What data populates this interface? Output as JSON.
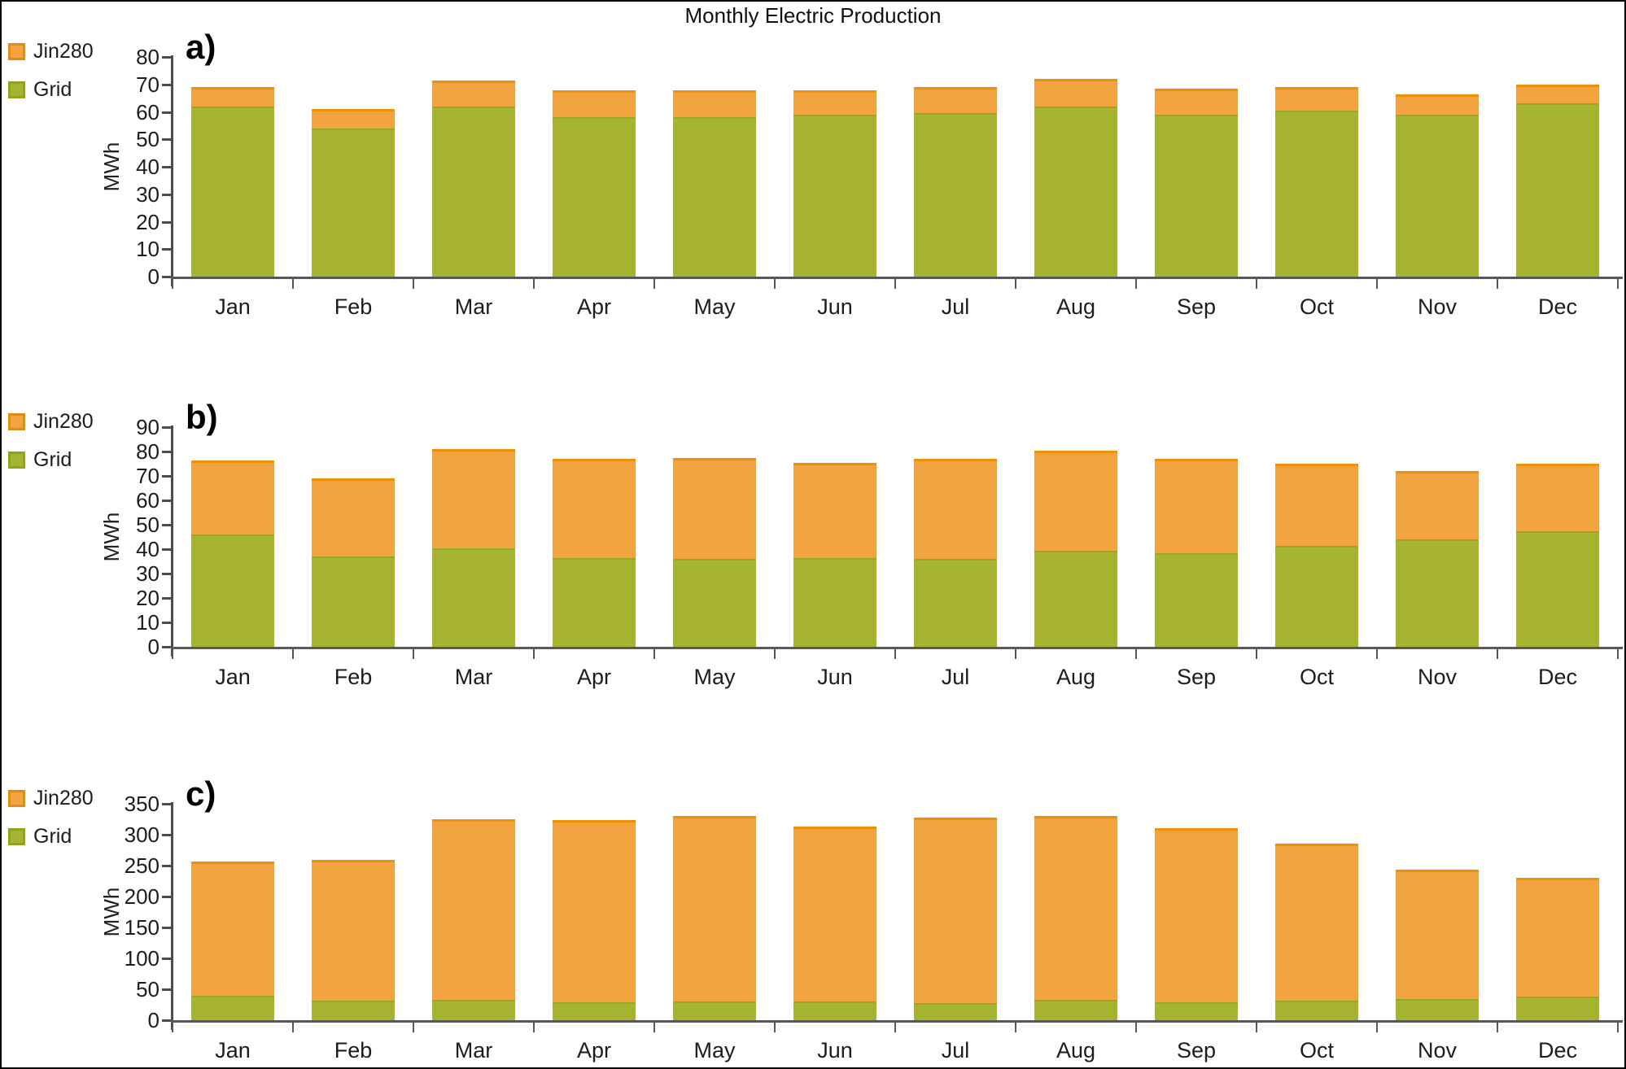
{
  "title": "Monthly Electric Production",
  "legend": {
    "jin280": "Jin280",
    "grid": "Grid"
  },
  "colors": {
    "jin280_fill": "#F1A43F",
    "jin280_edge": "#EE9104",
    "grid_fill": "#A6B42F",
    "grid_edge": "#96AA22",
    "axis": "#4d4d4f",
    "text": "#1d1d1f"
  },
  "chart_data": [
    {
      "panel": "a)",
      "type": "bar",
      "stacked": true,
      "ylabel": "MWh",
      "ylim": [
        0,
        80
      ],
      "ytick_step": 10,
      "grid": false,
      "legend_position": "top-left",
      "legend_order": [
        "Jin280",
        "Grid"
      ],
      "categories": [
        "Jan",
        "Feb",
        "Mar",
        "Apr",
        "May",
        "Jun",
        "Jul",
        "Aug",
        "Sep",
        "Oct",
        "Nov",
        "Dec"
      ],
      "series": [
        {
          "name": "Grid",
          "values": [
            62,
            54,
            62,
            58,
            58,
            59,
            59.5,
            62,
            59,
            60.5,
            59,
            63
          ]
        },
        {
          "name": "Jin280",
          "values": [
            7,
            7,
            9.5,
            10,
            10,
            9,
            9.5,
            10,
            9.5,
            8.5,
            7.5,
            7
          ]
        }
      ],
      "totals": [
        69,
        61,
        71.5,
        68,
        68,
        68,
        69,
        72,
        68.5,
        69,
        66.5,
        70
      ]
    },
    {
      "panel": "b)",
      "type": "bar",
      "stacked": true,
      "ylabel": "MWh",
      "ylim": [
        0,
        90
      ],
      "ytick_step": 10,
      "grid": false,
      "legend_position": "top-left",
      "legend_order": [
        "Jin280",
        "Grid"
      ],
      "categories": [
        "Jan",
        "Feb",
        "Mar",
        "Apr",
        "May",
        "Jun",
        "Jul",
        "Aug",
        "Sep",
        "Oct",
        "Nov",
        "Dec"
      ],
      "series": [
        {
          "name": "Grid",
          "values": [
            46,
            37,
            40.5,
            36.5,
            36,
            36.5,
            36,
            39.5,
            38.5,
            41.5,
            44,
            47.5
          ]
        },
        {
          "name": "Jin280",
          "values": [
            30.5,
            32,
            40.5,
            40.5,
            41.5,
            39,
            41,
            41,
            38.5,
            33.5,
            28,
            27.5
          ]
        }
      ],
      "totals": [
        76.5,
        69,
        81,
        77,
        77.5,
        75.5,
        77,
        80.5,
        77,
        75,
        72,
        75
      ]
    },
    {
      "panel": "c)",
      "type": "bar",
      "stacked": true,
      "ylabel": "MWh",
      "ylim": [
        0,
        350
      ],
      "ytick_step": 50,
      "grid": false,
      "legend_position": "top-left",
      "legend_order": [
        "Jin280",
        "Grid"
      ],
      "categories": [
        "Jan",
        "Feb",
        "Mar",
        "Apr",
        "May",
        "Jun",
        "Jul",
        "Aug",
        "Sep",
        "Oct",
        "Nov",
        "Dec"
      ],
      "series": [
        {
          "name": "Grid",
          "values": [
            40,
            31,
            33,
            29,
            30,
            30,
            28,
            33,
            29,
            31,
            34,
            38
          ]
        },
        {
          "name": "Jin280",
          "values": [
            216,
            228,
            292,
            295,
            300,
            283,
            299,
            297,
            282,
            254,
            210,
            192
          ]
        }
      ],
      "totals": [
        256,
        259,
        325,
        324,
        330,
        313,
        327,
        330,
        311,
        285,
        244,
        230
      ]
    }
  ]
}
